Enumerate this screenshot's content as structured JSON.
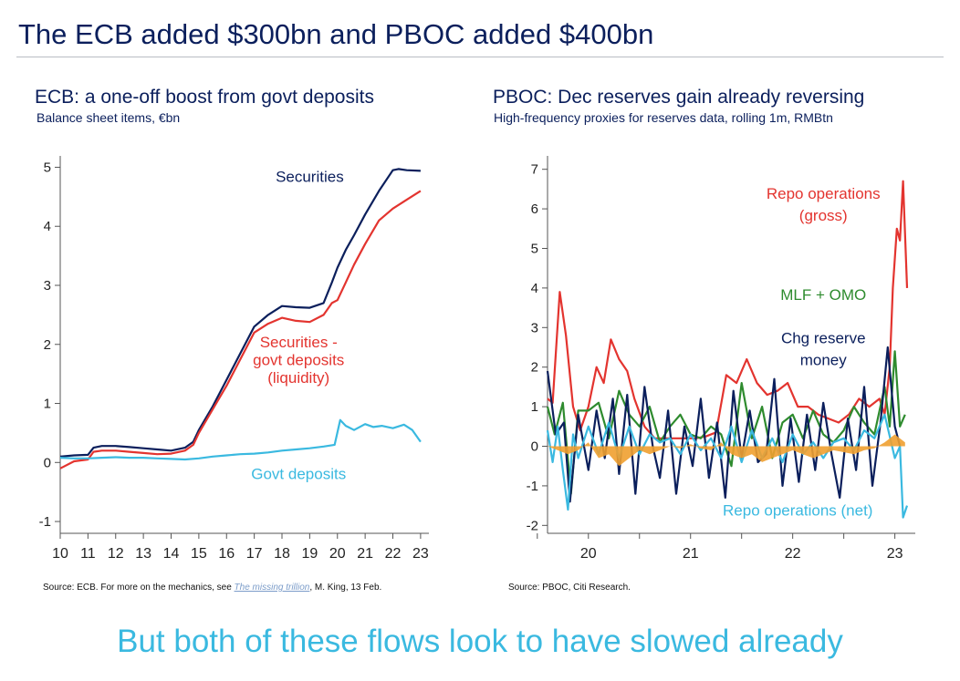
{
  "main_title": "The ECB added $300bn and PBOC added $400bn",
  "bottom_message": "But both of these flows look to have slowed already",
  "colors": {
    "title": "#0b1f5c",
    "navy": "#0b1f5c",
    "red": "#e3342f",
    "light_blue": "#3ab9e0",
    "green": "#2e8b2e",
    "orange": "#f0a030"
  },
  "ecb": {
    "title": "ECB: a one-off boost from govt deposits",
    "subtitle": "Balance sheet items, €bn",
    "source_prefix": "Source: ECB. For more on the mechanics, see ",
    "source_link": "The missing trillion",
    "source_suffix": ", M. King, 13 Feb."
  },
  "pboc": {
    "title": "PBOC: Dec reserves gain already reversing",
    "subtitle": "High-frequency proxies for reserves data, rolling 1m, RMBtn",
    "source": "Source: PBOC, Citi Research."
  },
  "chart_data": [
    {
      "type": "line",
      "title": "ECB: a one-off boost from govt deposits",
      "subtitle": "Balance sheet items, €bn",
      "xlim": [
        2010,
        2023.3
      ],
      "ylim": [
        -1.2,
        5.1
      ],
      "x_ticks": [
        2010,
        2011,
        2012,
        2013,
        2014,
        2015,
        2016,
        2017,
        2018,
        2019,
        2020,
        2021,
        2022,
        2023
      ],
      "x_tick_labels": [
        "10",
        "11",
        "12",
        "13",
        "14",
        "15",
        "16",
        "17",
        "18",
        "19",
        "20",
        "21",
        "22",
        "23"
      ],
      "y_ticks": [
        -1,
        0,
        1,
        2,
        3,
        4,
        5
      ],
      "grid": false,
      "series": [
        {
          "name": "Securities",
          "color": "#0b1f5c",
          "x": [
            2010,
            2010.5,
            2011,
            2011.2,
            2011.5,
            2012,
            2012.5,
            2013,
            2013.5,
            2014,
            2014.5,
            2014.8,
            2015,
            2015.5,
            2016,
            2016.5,
            2017,
            2017.5,
            2018,
            2018.5,
            2019,
            2019.5,
            2019.8,
            2020,
            2020.3,
            2020.6,
            2021,
            2021.5,
            2022,
            2022.2,
            2022.5,
            2023
          ],
          "y": [
            0.1,
            0.12,
            0.13,
            0.25,
            0.28,
            0.28,
            0.26,
            0.24,
            0.22,
            0.2,
            0.25,
            0.35,
            0.55,
            0.95,
            1.4,
            1.85,
            2.3,
            2.5,
            2.65,
            2.63,
            2.62,
            2.7,
            3.05,
            3.3,
            3.6,
            3.85,
            4.2,
            4.6,
            4.95,
            4.97,
            4.95,
            4.94
          ]
        },
        {
          "name": "Securities - govt deposits (liquidity)",
          "color": "#e3342f",
          "x": [
            2010,
            2010.5,
            2011,
            2011.2,
            2011.5,
            2012,
            2012.5,
            2013,
            2013.5,
            2014,
            2014.5,
            2014.8,
            2015,
            2015.5,
            2016,
            2016.5,
            2017,
            2017.5,
            2018,
            2018.5,
            2019,
            2019.5,
            2019.8,
            2020,
            2020.3,
            2020.6,
            2021,
            2021.5,
            2022,
            2022.5,
            2023
          ],
          "y": [
            -0.1,
            0.02,
            0.05,
            0.18,
            0.2,
            0.2,
            0.18,
            0.16,
            0.14,
            0.15,
            0.2,
            0.3,
            0.5,
            0.9,
            1.3,
            1.75,
            2.2,
            2.35,
            2.45,
            2.4,
            2.38,
            2.5,
            2.7,
            2.75,
            3.05,
            3.35,
            3.7,
            4.1,
            4.3,
            4.45,
            4.6
          ]
        },
        {
          "name": "Govt deposits",
          "color": "#3ab9e0",
          "x": [
            2010,
            2010.5,
            2011,
            2011.5,
            2012,
            2012.5,
            2013,
            2013.5,
            2014,
            2014.5,
            2015,
            2015.5,
            2016,
            2016.5,
            2017,
            2017.5,
            2018,
            2018.5,
            2019,
            2019.5,
            2019.9,
            2020.1,
            2020.3,
            2020.6,
            2021,
            2021.3,
            2021.6,
            2022,
            2022.4,
            2022.7,
            2023
          ],
          "y": [
            0.08,
            0.07,
            0.07,
            0.08,
            0.09,
            0.08,
            0.08,
            0.07,
            0.06,
            0.05,
            0.07,
            0.1,
            0.12,
            0.14,
            0.15,
            0.17,
            0.2,
            0.22,
            0.24,
            0.27,
            0.3,
            0.72,
            0.62,
            0.55,
            0.65,
            0.6,
            0.62,
            0.58,
            0.64,
            0.55,
            0.35
          ]
        }
      ],
      "annotations": [
        {
          "text": "Securities",
          "x": 2019,
          "y": 4.75
        },
        {
          "text": "Securities -",
          "x": 2018.6,
          "y": 1.95
        },
        {
          "text": "govt deposits",
          "x": 2018.6,
          "y": 1.65
        },
        {
          "text": "(liquidity)",
          "x": 2018.6,
          "y": 1.35
        },
        {
          "text": "Govt deposits",
          "x": 2018.6,
          "y": -0.28
        }
      ]
    },
    {
      "type": "line",
      "title": "PBOC: Dec reserves gain already reversing",
      "subtitle": "High-frequency proxies for reserves data, rolling 1m, RMBtn",
      "xlim": [
        2019.6,
        2023.2
      ],
      "ylim": [
        -2.2,
        7.2
      ],
      "x_ticks": [
        2019.5,
        2020,
        2020.5,
        2021,
        2021.5,
        2022,
        2022.5,
        2023
      ],
      "x_tick_labels": [
        "",
        "20",
        "",
        "21",
        "",
        "22",
        "",
        "23"
      ],
      "y_ticks": [
        -2,
        -1,
        0,
        1,
        2,
        3,
        4,
        5,
        6,
        7
      ],
      "grid": false,
      "series": [
        {
          "name": "Repo operations (gross)",
          "color": "#e3342f",
          "x": [
            2019.6,
            2019.65,
            2019.72,
            2019.78,
            2019.85,
            2019.92,
            2020.0,
            2020.08,
            2020.15,
            2020.22,
            2020.3,
            2020.38,
            2020.45,
            2020.55,
            2020.65,
            2020.75,
            2020.85,
            2020.95,
            2021.05,
            2021.15,
            2021.25,
            2021.35,
            2021.45,
            2021.55,
            2021.65,
            2021.75,
            2021.85,
            2021.95,
            2022.05,
            2022.15,
            2022.25,
            2022.35,
            2022.45,
            2022.55,
            2022.65,
            2022.75,
            2022.85,
            2022.9,
            2022.95,
            2022.98,
            2023.02,
            2023.05,
            2023.08,
            2023.12
          ],
          "y": [
            1.2,
            1.1,
            3.9,
            2.8,
            1.0,
            0.4,
            1.0,
            2.0,
            1.6,
            2.7,
            2.2,
            1.9,
            1.2,
            0.5,
            0.2,
            0.2,
            0.2,
            0.2,
            0.2,
            0.25,
            0.35,
            1.8,
            1.6,
            2.2,
            1.6,
            1.3,
            1.4,
            1.6,
            1.0,
            1.0,
            0.8,
            0.7,
            0.6,
            0.8,
            1.2,
            1.0,
            1.2,
            0.8,
            2.0,
            4.0,
            5.5,
            5.2,
            6.7,
            4.0
          ]
        },
        {
          "name": "MLF + OMO",
          "color": "#2e8b2e",
          "x": [
            2019.6,
            2019.67,
            2019.75,
            2019.83,
            2019.9,
            2020.0,
            2020.1,
            2020.2,
            2020.3,
            2020.4,
            2020.5,
            2020.6,
            2020.7,
            2020.8,
            2020.9,
            2021.0,
            2021.1,
            2021.2,
            2021.3,
            2021.4,
            2021.5,
            2021.6,
            2021.7,
            2021.8,
            2021.9,
            2022.0,
            2022.1,
            2022.2,
            2022.3,
            2022.4,
            2022.5,
            2022.6,
            2022.7,
            2022.8,
            2022.9,
            2022.95,
            2023.0,
            2023.05,
            2023.1
          ],
          "y": [
            1.0,
            0.3,
            1.1,
            -1.2,
            0.9,
            0.9,
            1.1,
            0.2,
            1.4,
            0.8,
            0.5,
            1.0,
            0.1,
            0.5,
            0.8,
            0.3,
            0.2,
            0.5,
            0.3,
            -0.5,
            1.6,
            0.2,
            1.0,
            -0.3,
            0.6,
            0.8,
            0.2,
            0.9,
            0.3,
            0.1,
            0.4,
            1.0,
            0.6,
            0.3,
            1.5,
            0.5,
            2.4,
            0.5,
            0.8
          ]
        },
        {
          "name": "Chg reserve money",
          "color": "#0b1f5c",
          "x": [
            2019.6,
            2019.68,
            2019.76,
            2019.82,
            2019.9,
            2020.0,
            2020.08,
            2020.16,
            2020.24,
            2020.3,
            2020.38,
            2020.46,
            2020.55,
            2020.63,
            2020.7,
            2020.78,
            2020.86,
            2020.94,
            2021.02,
            2021.1,
            2021.18,
            2021.26,
            2021.34,
            2021.42,
            2021.5,
            2021.58,
            2021.66,
            2021.74,
            2021.82,
            2021.9,
            2021.98,
            2022.06,
            2022.14,
            2022.22,
            2022.3,
            2022.38,
            2022.46,
            2022.54,
            2022.62,
            2022.7,
            2022.78,
            2022.86,
            2022.93,
            2023.0,
            2023.05
          ],
          "y": [
            1.9,
            0.3,
            0.6,
            -1.4,
            0.8,
            -0.6,
            0.9,
            -0.3,
            1.2,
            -0.7,
            1.3,
            -1.2,
            1.5,
            0.0,
            -0.8,
            0.9,
            -1.2,
            0.5,
            -0.5,
            1.2,
            -0.8,
            0.6,
            -1.3,
            1.4,
            -0.3,
            0.9,
            -0.4,
            -0.2,
            1.7,
            -1.0,
            0.7,
            -0.9,
            0.8,
            -0.6,
            1.1,
            -0.2,
            -1.3,
            0.7,
            -0.6,
            1.5,
            -1.0,
            0.6,
            2.5,
            0.5,
            0.0
          ]
        },
        {
          "name": "Repo operations (net)",
          "color": "#3ab9e0",
          "x": [
            2019.6,
            2019.65,
            2019.7,
            2019.75,
            2019.8,
            2019.85,
            2019.9,
            2020.0,
            2020.1,
            2020.2,
            2020.3,
            2020.4,
            2020.5,
            2020.6,
            2020.7,
            2020.8,
            2020.9,
            2021.0,
            2021.1,
            2021.2,
            2021.3,
            2021.4,
            2021.5,
            2021.6,
            2021.7,
            2021.8,
            2021.9,
            2022.0,
            2022.1,
            2022.2,
            2022.3,
            2022.4,
            2022.5,
            2022.6,
            2022.7,
            2022.8,
            2022.9,
            2023.0,
            2023.05,
            2023.08,
            2023.12
          ],
          "y": [
            0.4,
            -0.4,
            0.5,
            -0.6,
            -1.6,
            0.3,
            -0.3,
            0.5,
            -0.2,
            0.6,
            -0.3,
            0.5,
            -0.2,
            0.3,
            0.1,
            0.2,
            -0.2,
            0.3,
            -0.1,
            0.2,
            -0.3,
            0.5,
            -0.4,
            0.4,
            -0.3,
            0.2,
            -0.4,
            0.3,
            -0.2,
            0.1,
            -0.3,
            0.1,
            0.2,
            -0.1,
            0.4,
            0.2,
            0.8,
            -0.3,
            0.0,
            -1.8,
            -1.5
          ]
        },
        {
          "name": "",
          "color": "#f0a030",
          "style": "area",
          "x": [
            2019.6,
            2019.7,
            2019.8,
            2019.9,
            2020.0,
            2020.1,
            2020.2,
            2020.3,
            2020.4,
            2020.5,
            2020.6,
            2020.7,
            2020.8,
            2020.9,
            2021.0,
            2021.1,
            2021.2,
            2021.3,
            2021.4,
            2021.5,
            2021.6,
            2021.7,
            2021.8,
            2021.9,
            2022.0,
            2022.1,
            2022.2,
            2022.3,
            2022.4,
            2022.5,
            2022.6,
            2022.7,
            2022.8,
            2022.9,
            2023.0,
            2023.1
          ],
          "y": [
            0.0,
            -0.1,
            -0.2,
            -0.1,
            0.1,
            -0.3,
            -0.2,
            -0.5,
            -0.3,
            -0.1,
            -0.2,
            -0.1,
            0.0,
            -0.05,
            0.05,
            -0.05,
            -0.1,
            0.1,
            -0.2,
            -0.3,
            -0.2,
            -0.4,
            -0.3,
            -0.2,
            -0.1,
            -0.2,
            -0.3,
            -0.2,
            -0.1,
            -0.15,
            -0.2,
            -0.1,
            -0.05,
            0.1,
            0.3,
            0.1
          ]
        }
      ],
      "annotations": [
        {
          "text": "Repo operations",
          "x": 2022.3,
          "y": 6.25
        },
        {
          "text": "(gross)",
          "x": 2022.3,
          "y": 5.7
        },
        {
          "text": "MLF + OMO",
          "x": 2022.3,
          "y": 3.7
        },
        {
          "text": "Chg reserve",
          "x": 2022.3,
          "y": 2.6
        },
        {
          "text": "money",
          "x": 2022.3,
          "y": 2.05
        },
        {
          "text": "Repo operations (net)",
          "x": 2022.05,
          "y": -1.75
        }
      ]
    }
  ]
}
